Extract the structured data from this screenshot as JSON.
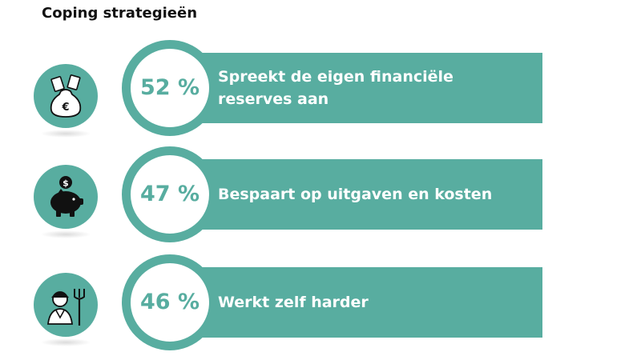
{
  "title": "Coping strategieën",
  "colors": {
    "accent": "#58ada0",
    "icon_dark": "#111111"
  },
  "chart_data": {
    "type": "bar",
    "title": "Coping strategieën",
    "categories": [
      "Spreekt de eigen financiële reserves aan",
      "Bespaart op uitgaven en kosten",
      "Werkt zelf harder"
    ],
    "values": [
      52,
      47,
      46
    ],
    "value_labels": [
      "52 %",
      "47 %",
      "46 %"
    ],
    "unit": "%",
    "icons": [
      "money-bag-icon",
      "piggy-bank-icon",
      "farmer-icon"
    ]
  }
}
